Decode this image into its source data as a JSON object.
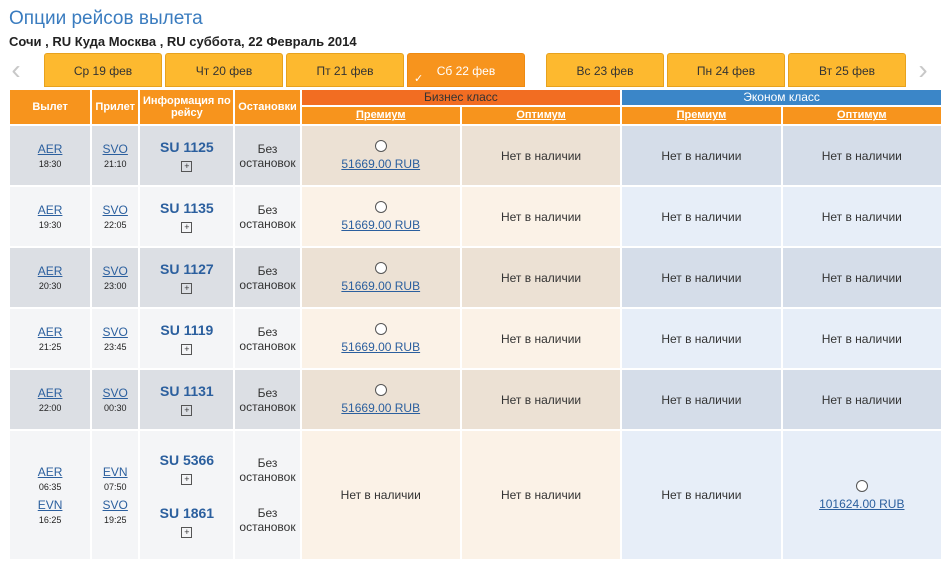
{
  "page": {
    "title": "Опции рейсов вылета",
    "subtitle": "Сочи , RU Куда Москва , RU суббота, 22 Февраль 2014"
  },
  "nav": {
    "prev_icon": "chevron-left-icon",
    "next_icon": "chevron-right-icon"
  },
  "tabs": [
    {
      "label": "Ср 19 фев",
      "selected": false
    },
    {
      "label": "Чт 20 фев",
      "selected": false
    },
    {
      "label": "Пт 21 фев",
      "selected": false
    },
    {
      "label": "Сб 22 фев",
      "selected": true
    },
    {
      "label": "Вс 23 фев",
      "selected": false
    },
    {
      "label": "Пн 24 фев",
      "selected": false
    },
    {
      "label": "Вт 25 фев",
      "selected": false
    }
  ],
  "headers": {
    "depart": "Вылет",
    "arrive": "Прилет",
    "info": "Информация по рейсу",
    "stops": "Остановки",
    "business": "Бизнес класс",
    "economy": "Эконом класс",
    "biz_premium": "Премиум",
    "biz_optimum": "Оптимум",
    "eco_premium": "Премиум",
    "eco_optimum": "Оптимум"
  },
  "colors": {
    "accent": "#f7941d",
    "business": "#f26d22",
    "economy": "#3b86c8",
    "link": "#2b5f9e"
  },
  "rows": [
    {
      "dep": "AER",
      "dep_time": "18:30",
      "arr": "SVO",
      "arr_time": "21:10",
      "flight": "SU  1125",
      "stops": "Без остановок",
      "biz_premium": "51669.00 RUB",
      "biz_optimum": "Нет в наличии",
      "eco_premium": "Нет в наличии",
      "eco_optimum": "Нет в наличии"
    },
    {
      "dep": "AER",
      "dep_time": "19:30",
      "arr": "SVO",
      "arr_time": "22:05",
      "flight": "SU  1135",
      "stops": "Без остановок",
      "biz_premium": "51669.00 RUB",
      "biz_optimum": "Нет в наличии",
      "eco_premium": "Нет в наличии",
      "eco_optimum": "Нет в наличии"
    },
    {
      "dep": "AER",
      "dep_time": "20:30",
      "arr": "SVO",
      "arr_time": "23:00",
      "flight": "SU  1127",
      "stops": "Без остановок",
      "biz_premium": "51669.00 RUB",
      "biz_optimum": "Нет в наличии",
      "eco_premium": "Нет в наличии",
      "eco_optimum": "Нет в наличии"
    },
    {
      "dep": "AER",
      "dep_time": "21:25",
      "arr": "SVO",
      "arr_time": "23:45",
      "flight": "SU  1119",
      "stops": "Без остановок",
      "biz_premium": "51669.00 RUB",
      "biz_optimum": "Нет в наличии",
      "eco_premium": "Нет в наличии",
      "eco_optimum": "Нет в наличии"
    },
    {
      "dep": "AER",
      "dep_time": "22:00",
      "arr": "SVO",
      "arr_time": "00:30",
      "flight": "SU  1131",
      "stops": "Без остановок",
      "biz_premium": "51669.00 RUB",
      "biz_optimum": "Нет в наличии",
      "eco_premium": "Нет в наличии",
      "eco_optimum": "Нет в наличии"
    }
  ],
  "connection": {
    "seg1": {
      "dep": "AER",
      "dep_time": "06:35",
      "arr": "EVN",
      "arr_time": "07:50",
      "flight": "SU  5366",
      "stops": "Без остановок"
    },
    "seg2": {
      "dep": "EVN",
      "dep_time": "16:25",
      "arr": "SVO",
      "arr_time": "19:25",
      "flight": "SU  1861",
      "stops": "Без остановок"
    },
    "biz_premium": "Нет в наличии",
    "biz_optimum": "Нет в наличии",
    "eco_premium": "Нет в наличии",
    "eco_optimum": "101624.00 RUB"
  }
}
